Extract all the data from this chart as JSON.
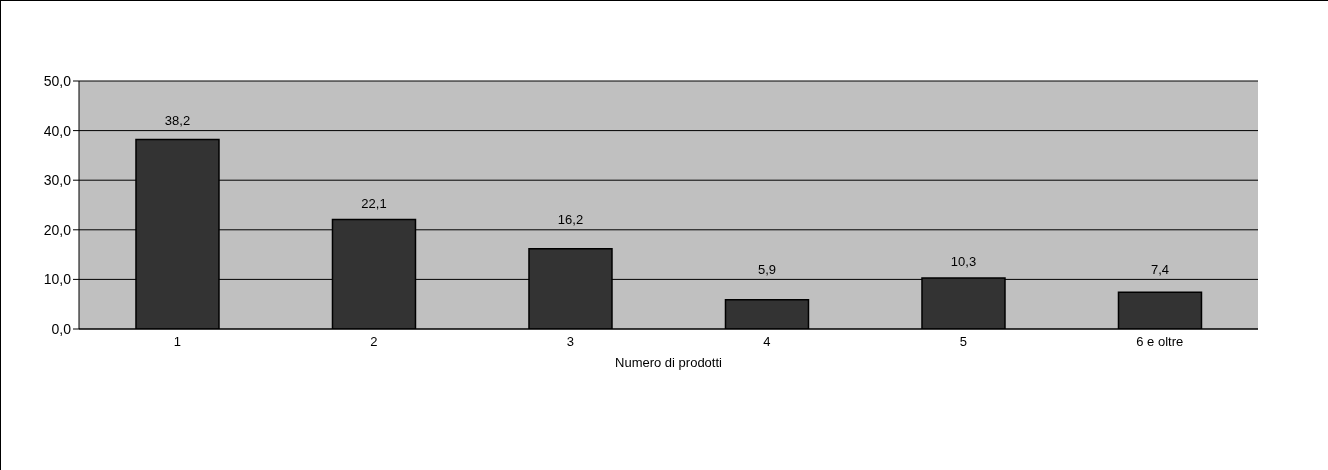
{
  "chart_data": {
    "type": "bar",
    "xlabel": "Numero di prodotti",
    "categories": [
      "1",
      "2",
      "3",
      "4",
      "5",
      "6 e oltre"
    ],
    "values": [
      38.2,
      22.1,
      16.2,
      5.9,
      10.3,
      7.4
    ],
    "value_labels": [
      "38,2",
      "22,1",
      "16,2",
      "5,9",
      "10,3",
      "7,4"
    ],
    "color": "#333333",
    "ylim": [
      0,
      50
    ],
    "yticks": [
      {
        "value": 0,
        "label": "0,0"
      },
      {
        "value": 10,
        "label": "10,0"
      },
      {
        "value": 20,
        "label": "20,0"
      },
      {
        "value": 30,
        "label": "30,0"
      },
      {
        "value": 40,
        "label": "40,0"
      },
      {
        "value": 50,
        "label": "50,0"
      }
    ],
    "grid": "y"
  }
}
